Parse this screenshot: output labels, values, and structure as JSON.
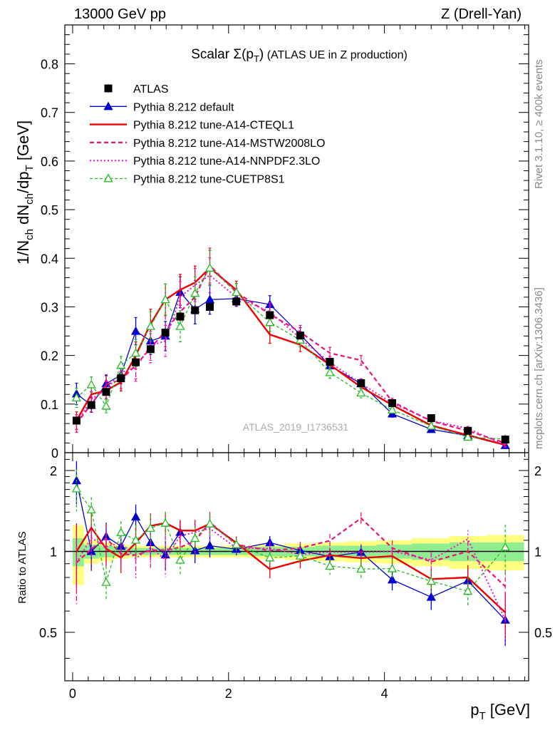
{
  "header": {
    "left": "13000 GeV pp",
    "right": "Z (Drell-Yan)"
  },
  "side_text": {
    "rivet": "Rivet 3.1.10, ≥ 400k events",
    "mcplots": "mcplots.cern.ch [arXiv:1306.3436]"
  },
  "chart_data": {
    "type": "line",
    "title": "Scalar Σ(p_T) (ATLAS UE in Z production)",
    "title_main": "Scalar ",
    "title_sigma": "Σ(p",
    "title_sub": "T",
    "title_close": ")",
    "title_rest": " (ATLAS UE in Z production)",
    "watermark": "ATLAS_2019_I1736531",
    "xlabel": "p_T [GeV]",
    "xlabel_main": "p",
    "xlabel_sub": "T",
    "xlabel_unit": " [GeV]",
    "ylabel": "1/N_ch dN_ch/dp_T [GeV]",
    "ylabel_ratio": "Ratio to ATLAS",
    "xlim": [
      -0.1,
      5.85
    ],
    "ylim": [
      0,
      0.88
    ],
    "ratio_ylim": [
      0.33,
      2.33
    ],
    "x_ticks": [
      0,
      2,
      4
    ],
    "x_tick_labels": [
      "0",
      "2",
      "4"
    ],
    "y_ticks": [
      0,
      0.1,
      0.2,
      0.3,
      0.4,
      0.5,
      0.6,
      0.7,
      0.8
    ],
    "y_tick_labels": [
      "0",
      "0.1",
      "0.2",
      "0.3",
      "0.4",
      "0.5",
      "0.6",
      "0.7",
      "0.8"
    ],
    "ratio_ticks": [
      0.5,
      1,
      2
    ],
    "ratio_tick_labels": [
      "0.5",
      "1",
      "2"
    ],
    "x": [
      0.05,
      0.24,
      0.43,
      0.62,
      0.81,
      1.0,
      1.19,
      1.38,
      1.57,
      1.76,
      2.1,
      2.53,
      2.92,
      3.3,
      3.7,
      4.1,
      4.6,
      5.07,
      5.55
    ],
    "data": {
      "name": "ATLAS",
      "values": [
        0.066,
        0.098,
        0.125,
        0.153,
        0.186,
        0.213,
        0.247,
        0.28,
        0.293,
        0.3,
        0.311,
        0.283,
        0.241,
        0.187,
        0.143,
        0.102,
        0.071,
        0.045,
        0.027
      ],
      "band_inner": [
        0.12,
        0.06,
        0.05,
        0.04,
        0.03,
        0.03,
        0.03,
        0.03,
        0.03,
        0.03,
        0.03,
        0.04,
        0.04,
        0.05,
        0.05,
        0.06,
        0.07,
        0.08,
        0.08
      ],
      "band_outer": [
        0.25,
        0.1,
        0.08,
        0.06,
        0.05,
        0.05,
        0.05,
        0.05,
        0.05,
        0.05,
        0.05,
        0.06,
        0.07,
        0.08,
        0.09,
        0.1,
        0.12,
        0.14,
        0.15
      ]
    },
    "series": [
      {
        "name": "Pythia 8.212 default",
        "color": "#0000cc",
        "dash": "",
        "width": 1.3,
        "marker": "triangle",
        "values": [
          0.121,
          0.098,
          0.142,
          0.16,
          0.25,
          0.23,
          0.24,
          0.33,
          0.295,
          0.315,
          0.317,
          0.305,
          0.243,
          0.179,
          0.142,
          0.08,
          0.048,
          0.035,
          0.015
        ],
        "errors": [
          0.022,
          0.015,
          0.018,
          0.018,
          0.028,
          0.028,
          0.03,
          0.032,
          0.03,
          0.03,
          0.016,
          0.018,
          0.014,
          0.012,
          0.01,
          0.007,
          0.005,
          0.004,
          0.003
        ]
      },
      {
        "name": "Pythia 8.212 tune-A14-CTEQL1",
        "color": "#ee0000",
        "dash": "",
        "width": 2.4,
        "marker": "none",
        "values": [
          0.066,
          0.12,
          0.128,
          0.145,
          0.2,
          0.265,
          0.315,
          0.335,
          0.35,
          0.38,
          0.335,
          0.243,
          0.222,
          0.181,
          0.135,
          0.098,
          0.056,
          0.036,
          0.016
        ],
        "errors": [
          0.018,
          0.016,
          0.018,
          0.018,
          0.028,
          0.03,
          0.032,
          0.032,
          0.034,
          0.036,
          0.018,
          0.018,
          0.014,
          0.012,
          0.01,
          0.007,
          0.005,
          0.004,
          0.003
        ]
      },
      {
        "name": "Pythia 8.212 tune-A14-MSTW2008LO",
        "color": "#ee1177",
        "dash": "6,4",
        "width": 2.2,
        "marker": "none",
        "values": [
          0.06,
          0.1,
          0.14,
          0.15,
          0.18,
          0.215,
          0.25,
          0.29,
          0.32,
          0.385,
          0.33,
          0.285,
          0.248,
          0.205,
          0.19,
          0.105,
          0.065,
          0.045,
          0.02
        ],
        "errors": [
          0.018,
          0.016,
          0.018,
          0.018,
          0.028,
          0.03,
          0.032,
          0.032,
          0.034,
          0.036,
          0.018,
          0.018,
          0.014,
          0.012,
          0.01,
          0.007,
          0.005,
          0.004,
          0.003
        ]
      },
      {
        "name": "Pythia 8.212 tune-A14-NNPDF2.3LO",
        "color": "#ee11cc",
        "dash": "2,3",
        "width": 2.0,
        "marker": "none",
        "values": [
          0.06,
          0.11,
          0.13,
          0.165,
          0.175,
          0.22,
          0.23,
          0.32,
          0.345,
          0.365,
          0.32,
          0.29,
          0.235,
          0.186,
          0.142,
          0.102,
          0.066,
          0.05,
          0.015
        ],
        "errors": [
          0.018,
          0.016,
          0.018,
          0.018,
          0.028,
          0.03,
          0.032,
          0.032,
          0.034,
          0.036,
          0.018,
          0.018,
          0.014,
          0.012,
          0.01,
          0.007,
          0.005,
          0.004,
          0.003
        ]
      },
      {
        "name": "Pythia 8.212 tune-CUETP8S1",
        "color": "#22bb22",
        "dash": "4,3",
        "width": 1.3,
        "marker": "triangle-open",
        "values": [
          0.113,
          0.14,
          0.096,
          0.18,
          0.205,
          0.26,
          0.315,
          0.26,
          0.328,
          0.38,
          0.33,
          0.268,
          0.232,
          0.165,
          0.123,
          0.088,
          0.055,
          0.032,
          0.028
        ],
        "errors": [
          0.02,
          0.016,
          0.014,
          0.018,
          0.028,
          0.03,
          0.032,
          0.032,
          0.034,
          0.036,
          0.018,
          0.018,
          0.014,
          0.012,
          0.01,
          0.007,
          0.005,
          0.004,
          0.006
        ]
      }
    ]
  }
}
